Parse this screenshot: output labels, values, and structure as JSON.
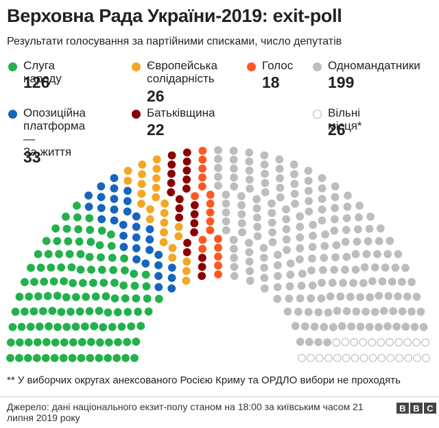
{
  "header": {
    "title": "Верховна Рада України-2019: exit-poll",
    "subtitle": "Результати голосування за партійними списками, число депутатів"
  },
  "chart_data": {
    "type": "hemicycle",
    "total_seats": 450,
    "series": [
      {
        "name": "Слуга народу",
        "label": "Слуга народу",
        "value": 126,
        "value_label": "126",
        "color": "#22b14c",
        "filled": true
      },
      {
        "name": "Опозиційна платформа — За життя",
        "label": "Опозиційна\nплатформа —\nЗа життя",
        "value": 33,
        "value_label": "33",
        "color": "#1565c0",
        "filled": true
      },
      {
        "name": "Європейська солідарність",
        "label": "Європейська\nсолідарність",
        "value": 26,
        "value_label": "26",
        "color": "#f5a623",
        "filled": true
      },
      {
        "name": "Батьківщина",
        "label": "Батьківщина",
        "value": 22,
        "value_label": "22",
        "color": "#8b0000",
        "filled": true
      },
      {
        "name": "Голос",
        "label": "Голос",
        "value": 18,
        "value_label": "18",
        "color": "#ff5722",
        "filled": true
      },
      {
        "name": "Одномандатники",
        "label": "Одномандатники",
        "value": 199,
        "value_label": "199",
        "color": "#bdbdbd",
        "filled": true
      },
      {
        "name": "Вільні місця*",
        "label": "Вільні місця*",
        "value": 26,
        "value_label": "26",
        "color": "#bdbdbd",
        "filled": false
      }
    ]
  },
  "footnote": "** У виборчих округах анексованого Росією Криму та ОРДЛО вибори не проходять",
  "source": "Джерело: дані національного екзит-полу станом на 18:00 за київським часом 21 липня 2019 року",
  "brand": {
    "letters": [
      "B",
      "B",
      "C"
    ]
  }
}
